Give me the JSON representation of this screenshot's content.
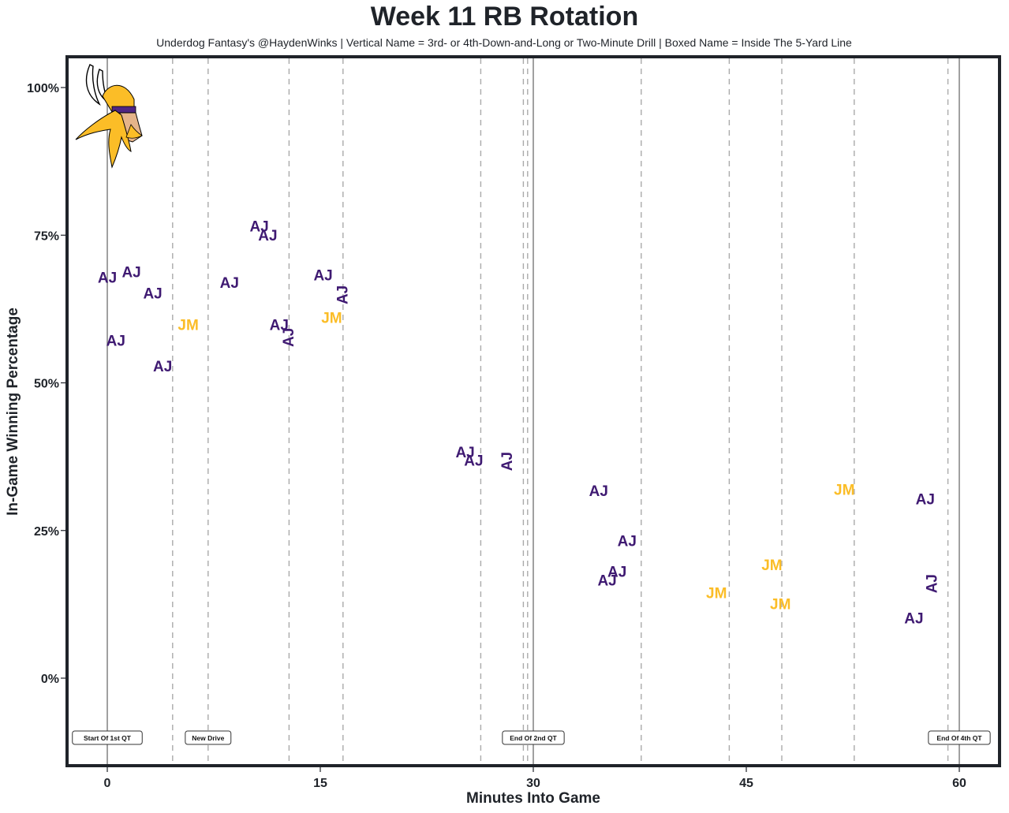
{
  "chart_data": {
    "type": "scatter",
    "title": "Week 11 RB Rotation",
    "subtitle": "Underdog Fantasy's @HaydenWinks | Vertical Name = 3rd- or 4th-Down-and-Long or Two-Minute Drill | Boxed Name = Inside The 5-Yard Line",
    "xlabel": "Minutes Into Game",
    "ylabel": "In-Game Winning Percentage",
    "xlim": [
      -2.7,
      63.0
    ],
    "ylim": [
      -15,
      105
    ],
    "x_ticks": [
      0,
      15,
      30,
      45,
      60
    ],
    "x_tick_labels": [
      "0",
      "15",
      "30",
      "45",
      "60"
    ],
    "y_ticks": [
      0,
      25,
      50,
      75,
      100
    ],
    "y_tick_labels": [
      "0%",
      "25%",
      "50%",
      "75%",
      "100%"
    ],
    "grid": false,
    "colors": {
      "AJ": "#3f1a72",
      "JM": "#fbbd27",
      "frame": "#1f2329",
      "dashed": "#aaaaaa",
      "solid": "#777777"
    },
    "quarter_lines": [
      0,
      30,
      60
    ],
    "drive_lines": [
      4.6,
      7.1,
      12.8,
      16.6,
      26.3,
      29.3,
      29.6,
      37.6,
      43.8,
      47.5,
      52.6,
      59.2
    ],
    "annotations": [
      {
        "x": 0,
        "text": "Start Of 1st QT"
      },
      {
        "x": 7.1,
        "text": "New Drive"
      },
      {
        "x": 30,
        "text": "End Of 2nd QT"
      },
      {
        "x": 60,
        "text": "End Of 4th QT"
      }
    ],
    "points": [
      {
        "label": "AJ",
        "x": 0.0,
        "y": 67.7,
        "vertical": false
      },
      {
        "label": "AJ",
        "x": 1.7,
        "y": 68.6,
        "vertical": false
      },
      {
        "label": "AJ",
        "x": 3.2,
        "y": 65.0,
        "vertical": false
      },
      {
        "label": "JM",
        "x": 5.7,
        "y": 59.7,
        "vertical": false
      },
      {
        "label": "AJ",
        "x": 0.6,
        "y": 57.0,
        "vertical": false
      },
      {
        "label": "AJ",
        "x": 3.9,
        "y": 52.7,
        "vertical": false
      },
      {
        "label": "AJ",
        "x": 8.6,
        "y": 66.8,
        "vertical": false
      },
      {
        "label": "AJ",
        "x": 10.7,
        "y": 76.4,
        "vertical": false
      },
      {
        "label": "AJ",
        "x": 11.3,
        "y": 74.8,
        "vertical": false
      },
      {
        "label": "AJ",
        "x": 12.1,
        "y": 59.7,
        "vertical": false
      },
      {
        "label": "AJ",
        "x": 12.8,
        "y": 57.7,
        "vertical": true
      },
      {
        "label": "AJ",
        "x": 15.2,
        "y": 68.1,
        "vertical": false
      },
      {
        "label": "AJ",
        "x": 16.6,
        "y": 64.9,
        "vertical": true
      },
      {
        "label": "JM",
        "x": 15.8,
        "y": 60.9,
        "vertical": false
      },
      {
        "label": "AJ",
        "x": 25.2,
        "y": 38.1,
        "vertical": false
      },
      {
        "label": "AJ",
        "x": 25.8,
        "y": 36.7,
        "vertical": false
      },
      {
        "label": "AJ",
        "x": 28.2,
        "y": 36.7,
        "vertical": true
      },
      {
        "label": "AJ",
        "x": 34.6,
        "y": 31.6,
        "vertical": false
      },
      {
        "label": "AJ",
        "x": 36.6,
        "y": 23.1,
        "vertical": false
      },
      {
        "label": "AJ",
        "x": 35.9,
        "y": 17.9,
        "vertical": false
      },
      {
        "label": "AJ",
        "x": 35.2,
        "y": 16.4,
        "vertical": false
      },
      {
        "label": "JM",
        "x": 42.9,
        "y": 14.3,
        "vertical": false
      },
      {
        "label": "JM",
        "x": 46.8,
        "y": 19.0,
        "vertical": false
      },
      {
        "label": "JM",
        "x": 47.4,
        "y": 12.4,
        "vertical": false
      },
      {
        "label": "JM",
        "x": 51.9,
        "y": 31.8,
        "vertical": false
      },
      {
        "label": "AJ",
        "x": 57.6,
        "y": 30.2,
        "vertical": false
      },
      {
        "label": "AJ",
        "x": 58.1,
        "y": 16.0,
        "vertical": true
      },
      {
        "label": "AJ",
        "x": 56.8,
        "y": 10.0,
        "vertical": false
      }
    ],
    "logo": "minnesota-vikings-logo"
  }
}
